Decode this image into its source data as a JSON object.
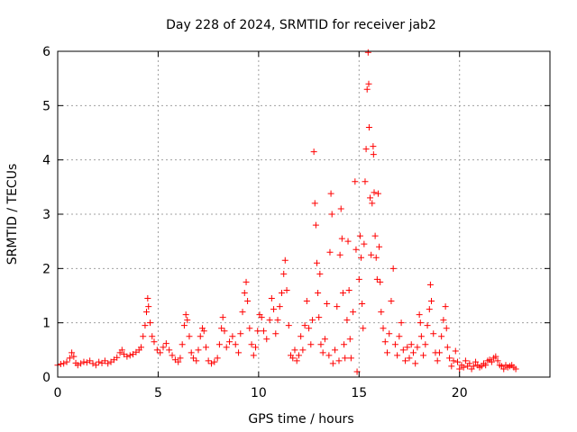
{
  "chart_data": {
    "type": "scatter",
    "title": "Day 228 of 2024, SRMTID for receiver jab2",
    "xlabel": "GPS time / hours",
    "ylabel": "SRMTID / TECUs",
    "xlim": [
      0,
      24.5
    ],
    "ylim": [
      0,
      6
    ],
    "xticks": [
      "0",
      "5",
      "10",
      "15",
      "20"
    ],
    "yticks": [
      "0",
      "1",
      "2",
      "3",
      "4",
      "5",
      "6"
    ],
    "grid": true,
    "marker": "+",
    "color": "#ff0000",
    "series": [
      {
        "name": "SRMTID",
        "points": [
          [
            0.0,
            0.22
          ],
          [
            0.15,
            0.24
          ],
          [
            0.3,
            0.25
          ],
          [
            0.45,
            0.28
          ],
          [
            0.6,
            0.35
          ],
          [
            0.7,
            0.45
          ],
          [
            0.8,
            0.38
          ],
          [
            0.9,
            0.26
          ],
          [
            1.0,
            0.22
          ],
          [
            1.15,
            0.25
          ],
          [
            1.3,
            0.28
          ],
          [
            1.45,
            0.27
          ],
          [
            1.6,
            0.3
          ],
          [
            1.75,
            0.25
          ],
          [
            1.9,
            0.22
          ],
          [
            2.05,
            0.28
          ],
          [
            2.2,
            0.26
          ],
          [
            2.35,
            0.3
          ],
          [
            2.5,
            0.25
          ],
          [
            2.65,
            0.28
          ],
          [
            2.8,
            0.32
          ],
          [
            2.95,
            0.36
          ],
          [
            3.1,
            0.45
          ],
          [
            3.2,
            0.5
          ],
          [
            3.3,
            0.42
          ],
          [
            3.45,
            0.38
          ],
          [
            3.6,
            0.4
          ],
          [
            3.75,
            0.42
          ],
          [
            3.9,
            0.46
          ],
          [
            4.05,
            0.5
          ],
          [
            4.15,
            0.55
          ],
          [
            4.25,
            0.75
          ],
          [
            4.35,
            0.95
          ],
          [
            4.42,
            1.2
          ],
          [
            4.48,
            1.45
          ],
          [
            4.52,
            1.3
          ],
          [
            4.6,
            1.0
          ],
          [
            4.7,
            0.75
          ],
          [
            4.8,
            0.65
          ],
          [
            4.95,
            0.5
          ],
          [
            5.1,
            0.45
          ],
          [
            5.25,
            0.55
          ],
          [
            5.4,
            0.62
          ],
          [
            5.55,
            0.5
          ],
          [
            5.7,
            0.4
          ],
          [
            5.85,
            0.32
          ],
          [
            6.0,
            0.28
          ],
          [
            6.1,
            0.35
          ],
          [
            6.2,
            0.6
          ],
          [
            6.3,
            0.95
          ],
          [
            6.38,
            1.15
          ],
          [
            6.45,
            1.05
          ],
          [
            6.55,
            0.75
          ],
          [
            6.65,
            0.45
          ],
          [
            6.75,
            0.35
          ],
          [
            6.9,
            0.3
          ],
          [
            7.0,
            0.5
          ],
          [
            7.1,
            0.75
          ],
          [
            7.2,
            0.9
          ],
          [
            7.28,
            0.85
          ],
          [
            7.38,
            0.55
          ],
          [
            7.5,
            0.3
          ],
          [
            7.65,
            0.25
          ],
          [
            7.8,
            0.28
          ],
          [
            7.95,
            0.35
          ],
          [
            8.05,
            0.6
          ],
          [
            8.15,
            0.9
          ],
          [
            8.22,
            1.1
          ],
          [
            8.3,
            0.85
          ],
          [
            8.4,
            0.55
          ],
          [
            8.55,
            0.65
          ],
          [
            8.7,
            0.75
          ],
          [
            8.85,
            0.6
          ],
          [
            9.0,
            0.45
          ],
          [
            9.1,
            0.8
          ],
          [
            9.2,
            1.2
          ],
          [
            9.3,
            1.55
          ],
          [
            9.38,
            1.75
          ],
          [
            9.45,
            1.4
          ],
          [
            9.55,
            0.9
          ],
          [
            9.65,
            0.6
          ],
          [
            9.75,
            0.4
          ],
          [
            9.85,
            0.55
          ],
          [
            9.95,
            0.85
          ],
          [
            10.05,
            1.15
          ],
          [
            10.15,
            1.1
          ],
          [
            10.25,
            0.85
          ],
          [
            10.4,
            0.7
          ],
          [
            10.55,
            1.05
          ],
          [
            10.65,
            1.45
          ],
          [
            10.75,
            1.25
          ],
          [
            10.85,
            0.8
          ],
          [
            10.95,
            1.05
          ],
          [
            11.05,
            1.3
          ],
          [
            11.15,
            1.55
          ],
          [
            11.25,
            1.9
          ],
          [
            11.32,
            2.15
          ],
          [
            11.4,
            1.6
          ],
          [
            11.5,
            0.95
          ],
          [
            11.6,
            0.4
          ],
          [
            11.7,
            0.35
          ],
          [
            11.8,
            0.5
          ],
          [
            11.9,
            0.3
          ],
          [
            12.0,
            0.4
          ],
          [
            12.1,
            0.75
          ],
          [
            12.2,
            0.5
          ],
          [
            12.3,
            0.95
          ],
          [
            12.4,
            1.4
          ],
          [
            12.5,
            0.9
          ],
          [
            12.6,
            0.6
          ],
          [
            12.68,
            1.05
          ],
          [
            12.75,
            4.15
          ],
          [
            12.8,
            3.2
          ],
          [
            12.85,
            2.8
          ],
          [
            12.9,
            2.1
          ],
          [
            12.95,
            1.55
          ],
          [
            13.0,
            1.1
          ],
          [
            13.05,
            1.9
          ],
          [
            13.1,
            0.6
          ],
          [
            13.2,
            0.45
          ],
          [
            13.3,
            0.7
          ],
          [
            13.4,
            1.35
          ],
          [
            13.5,
            0.4
          ],
          [
            13.55,
            2.3
          ],
          [
            13.6,
            3.38
          ],
          [
            13.65,
            3.0
          ],
          [
            13.7,
            0.25
          ],
          [
            13.8,
            0.5
          ],
          [
            13.9,
            1.3
          ],
          [
            14.0,
            0.3
          ],
          [
            14.05,
            2.25
          ],
          [
            14.1,
            3.1
          ],
          [
            14.15,
            2.55
          ],
          [
            14.2,
            1.55
          ],
          [
            14.25,
            0.6
          ],
          [
            14.3,
            0.35
          ],
          [
            14.4,
            1.05
          ],
          [
            14.45,
            2.5
          ],
          [
            14.5,
            1.6
          ],
          [
            14.55,
            0.7
          ],
          [
            14.6,
            0.35
          ],
          [
            14.7,
            1.2
          ],
          [
            14.8,
            3.6
          ],
          [
            14.85,
            2.35
          ],
          [
            14.9,
            0.1
          ],
          [
            15.0,
            1.8
          ],
          [
            15.05,
            2.6
          ],
          [
            15.1,
            2.2
          ],
          [
            15.15,
            1.35
          ],
          [
            15.2,
            0.9
          ],
          [
            15.25,
            2.45
          ],
          [
            15.3,
            3.6
          ],
          [
            15.35,
            4.2
          ],
          [
            15.4,
            5.3
          ],
          [
            15.45,
            5.98
          ],
          [
            15.48,
            5.4
          ],
          [
            15.5,
            4.6
          ],
          [
            15.55,
            3.3
          ],
          [
            15.6,
            2.25
          ],
          [
            15.65,
            3.2
          ],
          [
            15.7,
            4.25
          ],
          [
            15.72,
            4.1
          ],
          [
            15.75,
            3.4
          ],
          [
            15.8,
            2.6
          ],
          [
            15.85,
            2.2
          ],
          [
            15.9,
            1.8
          ],
          [
            15.95,
            3.38
          ],
          [
            16.0,
            2.4
          ],
          [
            16.05,
            1.75
          ],
          [
            16.1,
            1.2
          ],
          [
            16.2,
            0.9
          ],
          [
            16.3,
            0.65
          ],
          [
            16.4,
            0.45
          ],
          [
            16.5,
            0.8
          ],
          [
            16.6,
            1.4
          ],
          [
            16.7,
            2.0
          ],
          [
            16.8,
            0.6
          ],
          [
            16.9,
            0.4
          ],
          [
            17.0,
            0.75
          ],
          [
            17.1,
            1.0
          ],
          [
            17.2,
            0.5
          ],
          [
            17.3,
            0.3
          ],
          [
            17.4,
            0.55
          ],
          [
            17.5,
            0.35
          ],
          [
            17.6,
            0.6
          ],
          [
            17.7,
            0.45
          ],
          [
            17.8,
            0.25
          ],
          [
            17.9,
            0.55
          ],
          [
            18.0,
            1.15
          ],
          [
            18.05,
            1.0
          ],
          [
            18.1,
            0.75
          ],
          [
            18.2,
            0.4
          ],
          [
            18.3,
            0.6
          ],
          [
            18.4,
            0.95
          ],
          [
            18.5,
            1.25
          ],
          [
            18.55,
            1.7
          ],
          [
            18.6,
            1.4
          ],
          [
            18.7,
            0.8
          ],
          [
            18.8,
            0.45
          ],
          [
            18.9,
            0.3
          ],
          [
            19.0,
            0.45
          ],
          [
            19.1,
            0.75
          ],
          [
            19.2,
            1.05
          ],
          [
            19.3,
            1.3
          ],
          [
            19.35,
            0.9
          ],
          [
            19.4,
            0.55
          ],
          [
            19.5,
            0.35
          ],
          [
            19.6,
            0.2
          ],
          [
            19.7,
            0.3
          ],
          [
            19.8,
            0.48
          ],
          [
            19.9,
            0.28
          ],
          [
            20.0,
            0.15
          ],
          [
            20.1,
            0.22
          ],
          [
            20.2,
            0.18
          ],
          [
            20.3,
            0.3
          ],
          [
            20.4,
            0.2
          ],
          [
            20.5,
            0.25
          ],
          [
            20.6,
            0.15
          ],
          [
            20.7,
            0.2
          ],
          [
            20.8,
            0.28
          ],
          [
            20.9,
            0.22
          ],
          [
            21.0,
            0.18
          ],
          [
            21.1,
            0.2
          ],
          [
            21.2,
            0.25
          ],
          [
            21.3,
            0.22
          ],
          [
            21.4,
            0.3
          ],
          [
            21.5,
            0.32
          ],
          [
            21.6,
            0.28
          ],
          [
            21.7,
            0.35
          ],
          [
            21.8,
            0.38
          ],
          [
            21.9,
            0.3
          ],
          [
            22.0,
            0.22
          ],
          [
            22.1,
            0.2
          ],
          [
            22.2,
            0.15
          ],
          [
            22.3,
            0.22
          ],
          [
            22.4,
            0.18
          ],
          [
            22.5,
            0.2
          ],
          [
            22.6,
            0.22
          ],
          [
            22.7,
            0.18
          ],
          [
            22.8,
            0.15
          ]
        ]
      }
    ]
  }
}
